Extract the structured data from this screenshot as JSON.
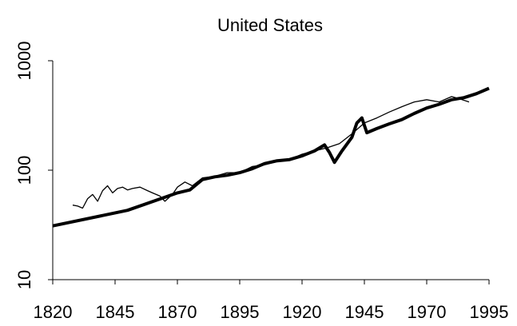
{
  "chart_data": {
    "type": "line",
    "title": "United States",
    "xlim": [
      1820,
      1995
    ],
    "xticks": [
      1820,
      1845,
      1870,
      1895,
      1920,
      1945,
      1970,
      1995
    ],
    "ylim": [
      10,
      1000
    ],
    "yticks": [
      10,
      100,
      1000
    ],
    "log_y": true,
    "grid": false,
    "series": [
      {
        "color": "#000000",
        "width": 4,
        "x": [
          1820,
          1850,
          1870,
          1875,
          1880,
          1885,
          1890,
          1895,
          1900,
          1905,
          1910,
          1915,
          1920,
          1925,
          1929,
          1931,
          1933,
          1936,
          1940,
          1942,
          1944,
          1946,
          1950,
          1955,
          1960,
          1965,
          1970,
          1975,
          1980,
          1985,
          1990,
          1995
        ],
        "values": [
          31,
          43,
          62,
          66,
          82,
          87,
          90,
          95,
          103,
          115,
          122,
          125,
          135,
          150,
          170,
          145,
          118,
          150,
          200,
          270,
          300,
          220,
          240,
          265,
          290,
          330,
          370,
          400,
          440,
          460,
          500,
          560
        ]
      },
      {
        "color": "#000000",
        "width": 1.3,
        "x": [
          1828,
          1830,
          1832,
          1834,
          1836,
          1838,
          1840,
          1842,
          1844,
          1846,
          1848,
          1850,
          1852,
          1855,
          1858,
          1860,
          1863,
          1865,
          1868,
          1870,
          1873,
          1876,
          1880,
          1885,
          1890,
          1895,
          1900,
          1905,
          1910,
          1915,
          1920,
          1925,
          1930,
          1935,
          1940,
          1945,
          1950,
          1955,
          1960,
          1965,
          1970,
          1975,
          1980,
          1983,
          1987
        ],
        "values": [
          48,
          47,
          45,
          55,
          60,
          52,
          65,
          72,
          62,
          68,
          70,
          66,
          68,
          70,
          65,
          62,
          58,
          52,
          60,
          70,
          78,
          72,
          85,
          88,
          95,
          95,
          108,
          112,
          120,
          125,
          140,
          150,
          160,
          175,
          215,
          270,
          300,
          340,
          380,
          420,
          440,
          420,
          470,
          450,
          420
        ]
      }
    ]
  }
}
